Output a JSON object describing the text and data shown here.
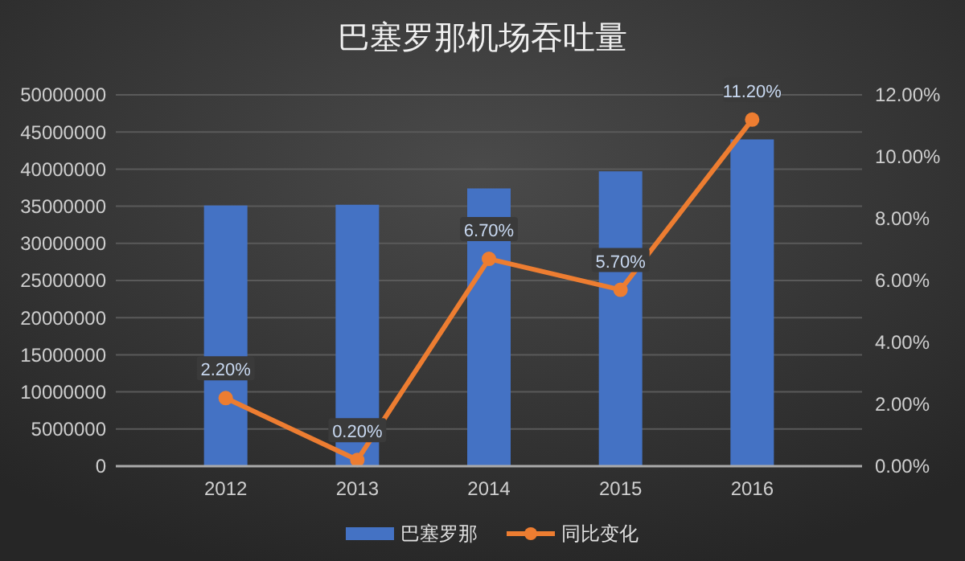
{
  "chart_data": {
    "type": "bar",
    "title": "巴塞罗那机场吞吐量",
    "categories": [
      "2012",
      "2013",
      "2014",
      "2015",
      "2016"
    ],
    "series": [
      {
        "name": "巴塞罗那",
        "color": "#4472c4",
        "values": [
          35100000,
          35200000,
          37400000,
          39700000,
          44000000
        ]
      },
      {
        "name": "同比变化",
        "type": "line",
        "axis": "y2",
        "color": "#ed7d31",
        "values": [
          2.2,
          0.2,
          6.7,
          5.7,
          11.2
        ],
        "value_labels": [
          "2.20%",
          "0.20%",
          "6.70%",
          "5.70%",
          "11.20%"
        ]
      }
    ],
    "ylim": [
      0,
      50000000
    ],
    "yticks": [
      0,
      5000000,
      10000000,
      15000000,
      20000000,
      25000000,
      30000000,
      35000000,
      40000000,
      45000000,
      50000000
    ],
    "y2lim": [
      0,
      12
    ],
    "y2ticks": [
      {
        "value": 0,
        "label": "0.00%"
      },
      {
        "value": 2,
        "label": "2.00%"
      },
      {
        "value": 4,
        "label": "4.00%"
      },
      {
        "value": 6,
        "label": "6.00%"
      },
      {
        "value": 8,
        "label": "8.00%"
      },
      {
        "value": 10,
        "label": "10.00%"
      },
      {
        "value": 12,
        "label": "12.00%"
      }
    ],
    "grid": "y",
    "legend": "bottom",
    "marker": "circle",
    "line_style": "solid"
  }
}
